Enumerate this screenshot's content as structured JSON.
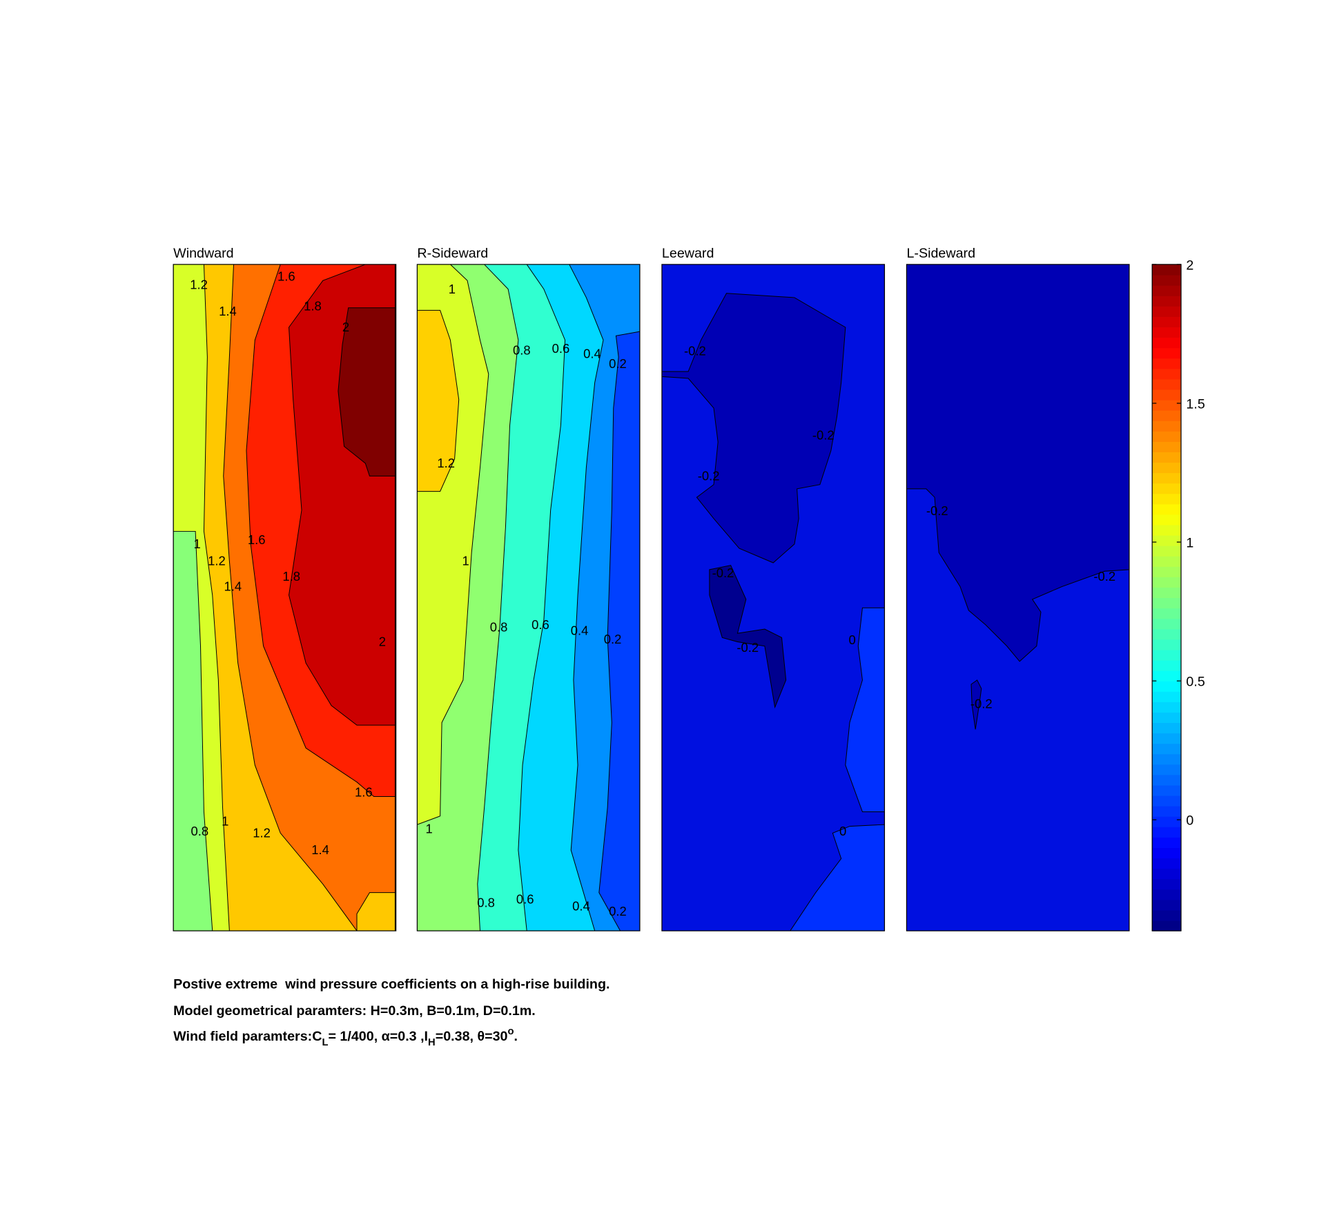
{
  "chart_data": {
    "type": "contour",
    "colormap": "jet",
    "panels": [
      {
        "title": "Windward",
        "contour_labels": [
          1.2,
          1.4,
          1.6,
          1.8,
          2,
          1,
          1.2,
          1.6,
          1.4,
          1.8,
          2,
          1.6,
          0.8,
          1,
          1.2,
          1.4
        ]
      },
      {
        "title": "R-Sideward",
        "contour_labels": [
          1,
          0.8,
          0.6,
          0.4,
          0.2,
          1.2,
          1,
          0.8,
          0.6,
          0.4,
          0.2,
          1,
          0.8,
          0.6,
          0.4,
          0.2
        ]
      },
      {
        "title": "Leeward",
        "contour_labels": [
          -0.2,
          -0.2,
          -0.2,
          -0.2,
          -0.2,
          0,
          0
        ]
      },
      {
        "title": "L-Sideward",
        "contour_labels": [
          -0.2,
          -0.2,
          -0.2
        ]
      }
    ],
    "colorbar": {
      "clim": [
        -0.4,
        2
      ],
      "ticks": [
        0,
        0.5,
        1,
        1.5,
        2
      ]
    }
  },
  "caption": {
    "lines": [
      [
        "Postive extreme  wind pressure coefficients on a high-rise building."
      ],
      [
        "Model geometrical paramters: H=0.3m, B=0.1m, D=0.1m."
      ],
      [
        "Wind field paramters:C",
        "L",
        "= 1/400, α=0.3 ,I",
        "H",
        "=0.38, θ=30",
        "o",
        "."
      ]
    ]
  }
}
